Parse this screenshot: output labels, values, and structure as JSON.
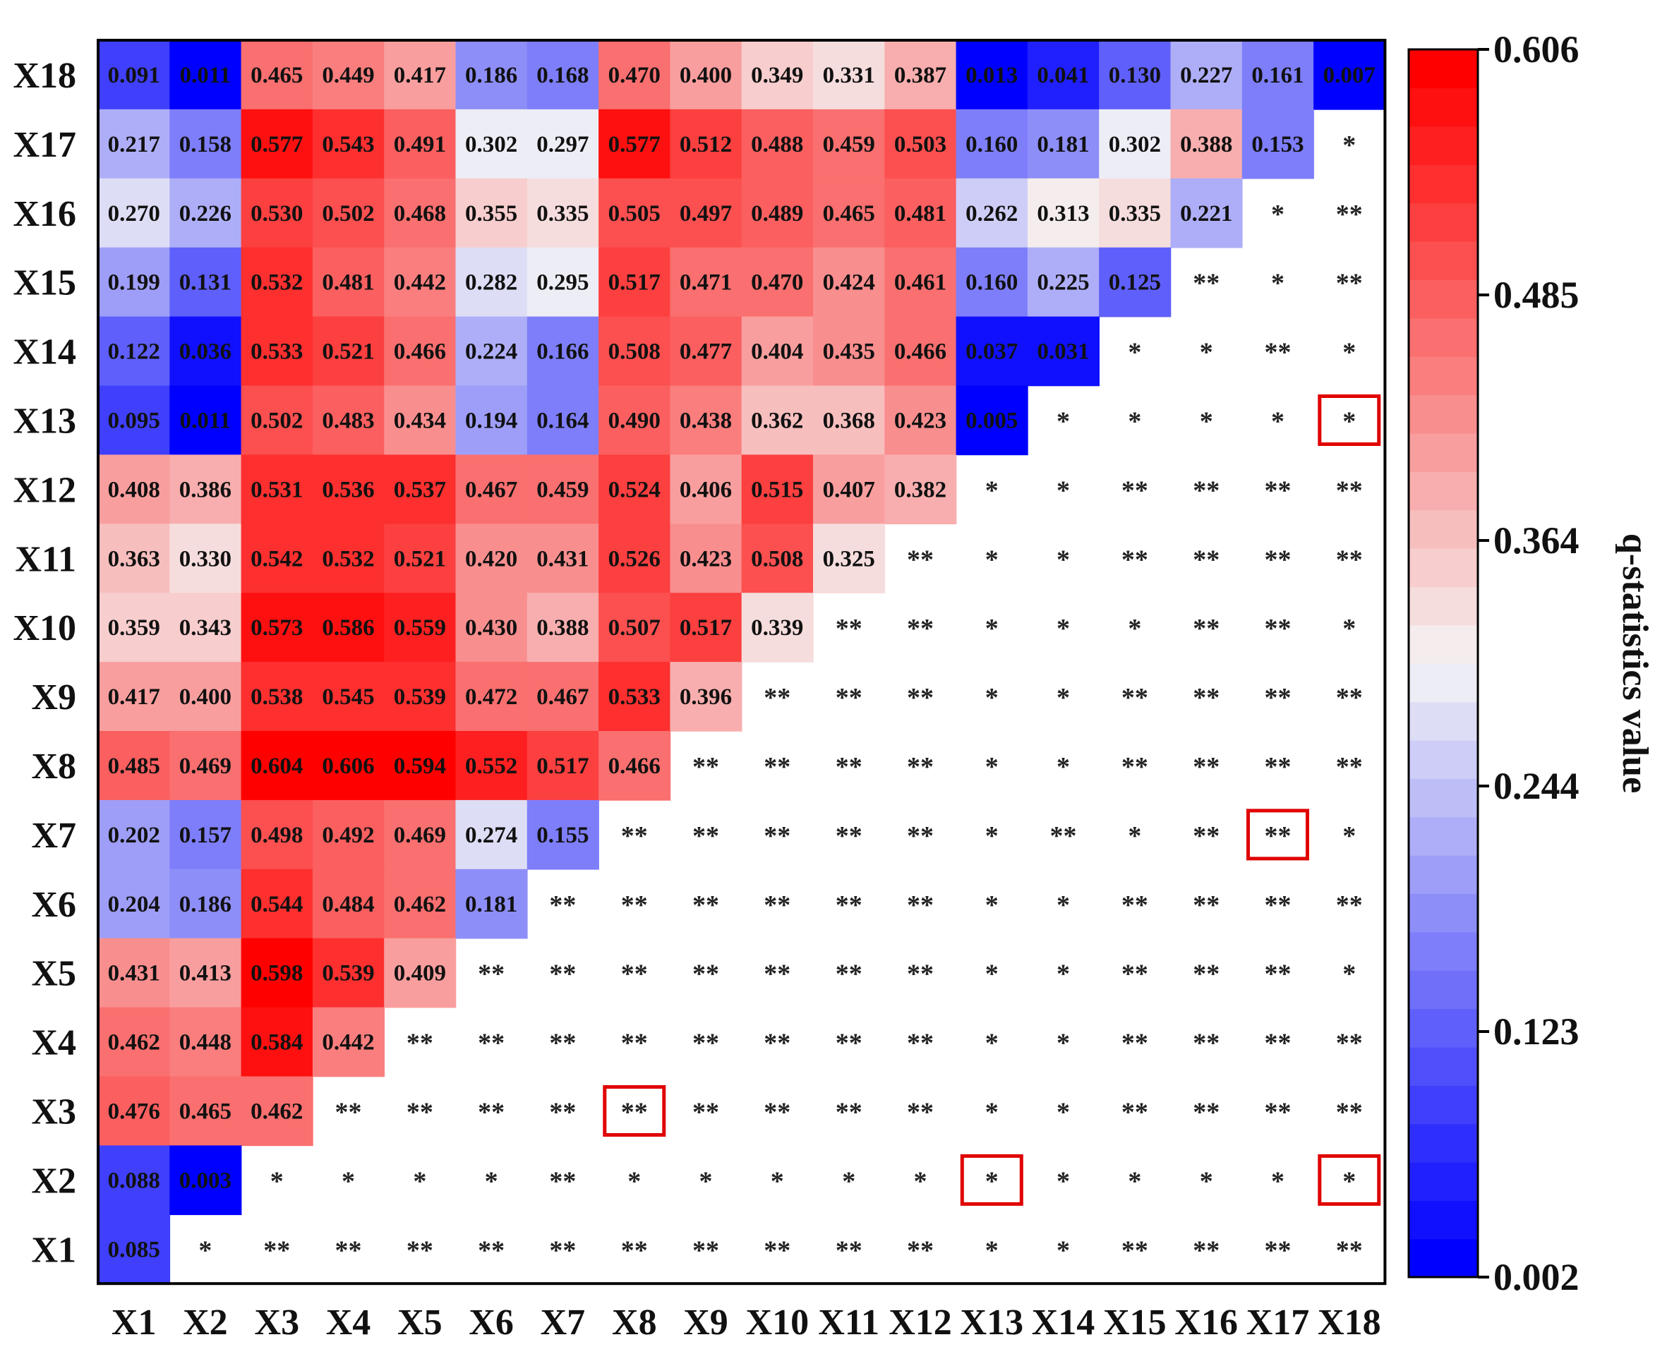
{
  "chart_data": {
    "type": "heatmap",
    "x_labels": [
      "X1",
      "X2",
      "X3",
      "X4",
      "X5",
      "X6",
      "X7",
      "X8",
      "X9",
      "X10",
      "X11",
      "X12",
      "X13",
      "X14",
      "X15",
      "X16",
      "X17",
      "X18"
    ],
    "y_labels": [
      "X18",
      "X17",
      "X16",
      "X15",
      "X14",
      "X13",
      "X12",
      "X11",
      "X10",
      "X9",
      "X8",
      "X7",
      "X6",
      "X5",
      "X4",
      "X3",
      "X2",
      "X1"
    ],
    "rows": [
      [
        "0.091",
        "0.011",
        "0.465",
        "0.449",
        "0.417",
        "0.186",
        "0.168",
        "0.470",
        "0.400",
        "0.349",
        "0.331",
        "0.387",
        "0.013",
        "0.041",
        "0.130",
        "0.227",
        "0.161",
        "0.007"
      ],
      [
        "0.217",
        "0.158",
        "0.577",
        "0.543",
        "0.491",
        "0.302",
        "0.297",
        "0.577",
        "0.512",
        "0.488",
        "0.459",
        "0.503",
        "0.160",
        "0.181",
        "0.302",
        "0.388",
        "0.153",
        "*"
      ],
      [
        "0.270",
        "0.226",
        "0.530",
        "0.502",
        "0.468",
        "0.355",
        "0.335",
        "0.505",
        "0.497",
        "0.489",
        "0.465",
        "0.481",
        "0.262",
        "0.313",
        "0.335",
        "0.221",
        "*",
        "**"
      ],
      [
        "0.199",
        "0.131",
        "0.532",
        "0.481",
        "0.442",
        "0.282",
        "0.295",
        "0.517",
        "0.471",
        "0.470",
        "0.424",
        "0.461",
        "0.160",
        "0.225",
        "0.125",
        "**",
        "*",
        "**"
      ],
      [
        "0.122",
        "0.036",
        "0.533",
        "0.521",
        "0.466",
        "0.224",
        "0.166",
        "0.508",
        "0.477",
        "0.404",
        "0.435",
        "0.466",
        "0.037",
        "0.031",
        "*",
        "*",
        "**",
        "*"
      ],
      [
        "0.095",
        "0.011",
        "0.502",
        "0.483",
        "0.434",
        "0.194",
        "0.164",
        "0.490",
        "0.438",
        "0.362",
        "0.368",
        "0.423",
        "0.005",
        "*",
        "*",
        "*",
        "*",
        "*"
      ],
      [
        "0.408",
        "0.386",
        "0.531",
        "0.536",
        "0.537",
        "0.467",
        "0.459",
        "0.524",
        "0.406",
        "0.515",
        "0.407",
        "0.382",
        "*",
        "*",
        "**",
        "**",
        "**",
        "**"
      ],
      [
        "0.363",
        "0.330",
        "0.542",
        "0.532",
        "0.521",
        "0.420",
        "0.431",
        "0.526",
        "0.423",
        "0.508",
        "0.325",
        "**",
        "*",
        "*",
        "**",
        "**",
        "**",
        "**"
      ],
      [
        "0.359",
        "0.343",
        "0.573",
        "0.586",
        "0.559",
        "0.430",
        "0.388",
        "0.507",
        "0.517",
        "0.339",
        "**",
        "**",
        "*",
        "*",
        "*",
        "**",
        "**",
        "*"
      ],
      [
        "0.417",
        "0.400",
        "0.538",
        "0.545",
        "0.539",
        "0.472",
        "0.467",
        "0.533",
        "0.396",
        "**",
        "**",
        "**",
        "*",
        "*",
        "**",
        "**",
        "**",
        "**"
      ],
      [
        "0.485",
        "0.469",
        "0.604",
        "0.606",
        "0.594",
        "0.552",
        "0.517",
        "0.466",
        "**",
        "**",
        "**",
        "**",
        "*",
        "*",
        "**",
        "**",
        "**",
        "**"
      ],
      [
        "0.202",
        "0.157",
        "0.498",
        "0.492",
        "0.469",
        "0.274",
        "0.155",
        "**",
        "**",
        "**",
        "**",
        "**",
        "*",
        "**",
        "*",
        "**",
        "**",
        "*"
      ],
      [
        "0.204",
        "0.186",
        "0.544",
        "0.484",
        "0.462",
        "0.181",
        "**",
        "**",
        "**",
        "**",
        "**",
        "**",
        "*",
        "*",
        "**",
        "**",
        "**",
        "**"
      ],
      [
        "0.431",
        "0.413",
        "0.598",
        "0.539",
        "0.409",
        "**",
        "**",
        "**",
        "**",
        "**",
        "**",
        "**",
        "*",
        "*",
        "**",
        "**",
        "**",
        "*"
      ],
      [
        "0.462",
        "0.448",
        "0.584",
        "0.442",
        "**",
        "**",
        "**",
        "**",
        "**",
        "**",
        "**",
        "**",
        "*",
        "*",
        "**",
        "**",
        "**",
        "**"
      ],
      [
        "0.476",
        "0.465",
        "0.462",
        "**",
        "**",
        "**",
        "**",
        "**",
        "**",
        "**",
        "**",
        "**",
        "*",
        "*",
        "**",
        "**",
        "**",
        "**"
      ],
      [
        "0.088",
        "0.003",
        "*",
        "*",
        "*",
        "*",
        "**",
        "*",
        "*",
        "*",
        "*",
        "*",
        "*",
        "*",
        "*",
        "*",
        "*",
        "*"
      ],
      [
        "0.085",
        "*",
        "**",
        "**",
        "**",
        "**",
        "**",
        "**",
        "**",
        "**",
        "**",
        "**",
        "*",
        "*",
        "**",
        "**",
        "**",
        "**"
      ]
    ],
    "highlighted": [
      {
        "row": "X13",
        "col": "X18"
      },
      {
        "row": "X7",
        "col": "X17"
      },
      {
        "row": "X3",
        "col": "X8"
      },
      {
        "row": "X2",
        "col": "X13"
      },
      {
        "row": "X2",
        "col": "X18"
      }
    ],
    "colorbar": {
      "title": "q-statistics value",
      "min": 0.002,
      "max": 0.606,
      "ticks": [
        "0.606",
        "0.485",
        "0.364",
        "0.244",
        "0.123",
        "0.002"
      ],
      "low_color": "#0000ff",
      "mid_color": "#f5f5f5",
      "high_color": "#ff0000"
    },
    "highlight_color": "#e00000"
  }
}
